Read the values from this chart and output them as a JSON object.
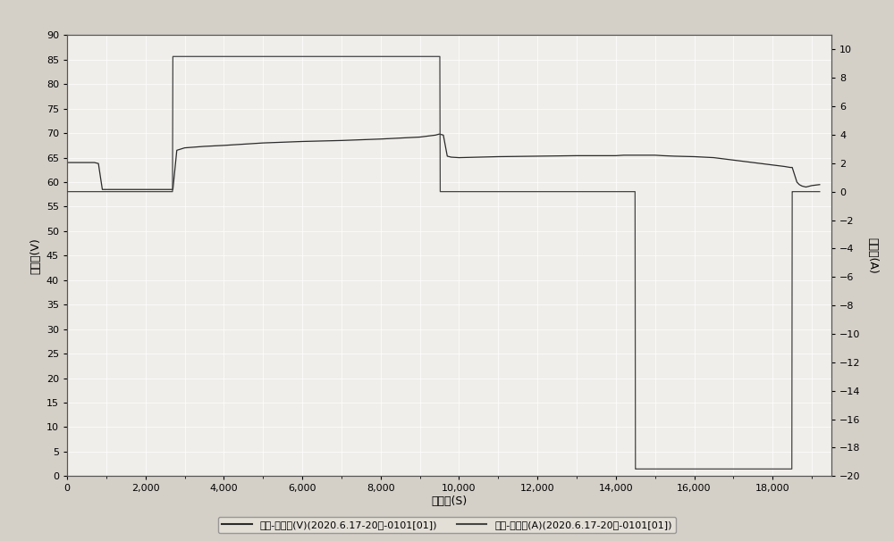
{
  "bg_color": "#d4d0c8",
  "plot_bg_color": "#f0eeea",
  "grid_color": "#ffffff",
  "xlabel": "总时间(S)",
  "ylabel_left": "总电压(V)",
  "ylabel_right": "总电流(A)",
  "xlim": [
    0,
    19500
  ],
  "ylim_left": [
    0,
    90
  ],
  "ylim_right": [
    -20,
    11
  ],
  "legend_labels": [
    "时间-总电压(V)(2020.6.17-20度-0101[01])",
    "时间-总电流(A)(2020.6.17-20度-0101[01])"
  ],
  "voltage_x": [
    0,
    700,
    800,
    900,
    2700,
    2800,
    3000,
    3500,
    4000,
    5000,
    6000,
    7000,
    8000,
    9000,
    9200,
    9400,
    9490,
    9510,
    9600,
    9700,
    9800,
    10000,
    11000,
    12000,
    13000,
    14000,
    14200,
    14480,
    14520,
    14600,
    14700,
    15000,
    15200,
    15500,
    16000,
    16500,
    17000,
    17500,
    18000,
    18300,
    18450,
    18500,
    18540,
    18580,
    18620,
    18680,
    18750,
    18850,
    19000,
    19200
  ],
  "voltage_y": [
    64.0,
    64.0,
    63.8,
    58.5,
    58.5,
    66.5,
    67.0,
    67.3,
    67.5,
    68.0,
    68.3,
    68.5,
    68.8,
    69.2,
    69.4,
    69.6,
    69.8,
    69.8,
    69.6,
    65.3,
    65.1,
    65.0,
    65.2,
    65.3,
    65.4,
    65.4,
    65.5,
    65.5,
    65.5,
    65.5,
    65.5,
    65.5,
    65.4,
    65.3,
    65.2,
    65.0,
    64.5,
    64.0,
    63.5,
    63.2,
    63.0,
    63.0,
    62.0,
    61.0,
    60.0,
    59.5,
    59.2,
    59.0,
    59.3,
    59.5
  ],
  "current_x": [
    0,
    800,
    900,
    2690,
    2700,
    2710,
    9490,
    9500,
    9510,
    9520,
    14490,
    14500,
    14510,
    14510,
    18490,
    18500,
    18510,
    19200
  ],
  "current_y": [
    0.0,
    0.0,
    0.0,
    0.0,
    9.5,
    9.5,
    9.5,
    9.5,
    9.5,
    0.0,
    0.0,
    -19.5,
    -19.5,
    -19.5,
    -19.5,
    0.0,
    0.0,
    0.0
  ]
}
